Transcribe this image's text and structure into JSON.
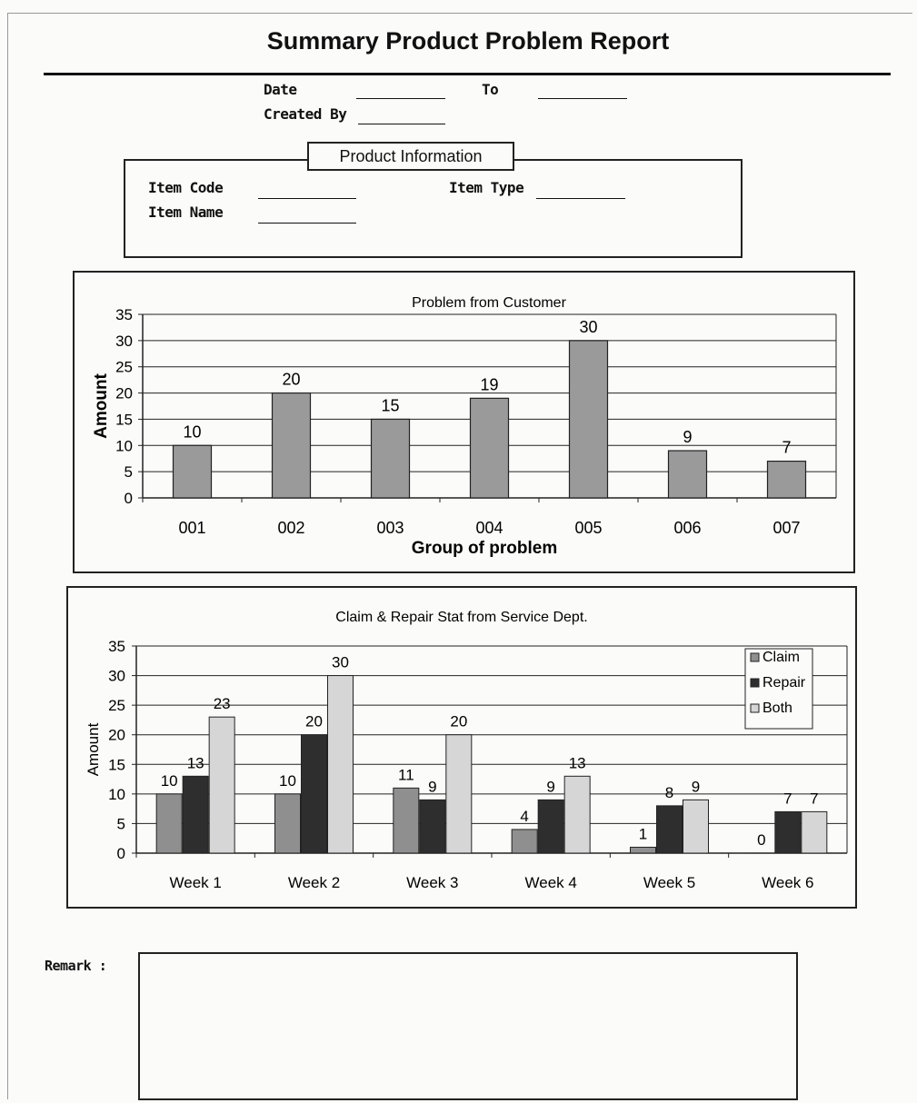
{
  "report": {
    "title": "Summary Product Problem Report",
    "date_label": "Date",
    "to_label": "To",
    "created_by_label": "Created By"
  },
  "product_info": {
    "heading": "Product Information",
    "item_code_label": "Item Code",
    "item_type_label": "Item Type",
    "item_name_label": "Item Name"
  },
  "remark_label": "Remark :",
  "chart_data": [
    {
      "type": "bar",
      "title": "Problem from Customer",
      "xlabel": "Group of problem",
      "ylabel": "Amount",
      "categories": [
        "001",
        "002",
        "003",
        "004",
        "005",
        "006",
        "007"
      ],
      "values": [
        10,
        20,
        15,
        19,
        30,
        9,
        7
      ],
      "ylim": [
        0,
        35
      ],
      "yticks": [
        0,
        5,
        10,
        15,
        20,
        25,
        30,
        35
      ],
      "grid": true,
      "bar_color": "#9a9a9a"
    },
    {
      "type": "bar",
      "title": "Claim & Repair Stat from Service Dept.",
      "xlabel": "",
      "ylabel": "Amount",
      "categories": [
        "Week 1",
        "Week 2",
        "Week 3",
        "Week 4",
        "Week 5",
        "Week 6"
      ],
      "series": [
        {
          "name": "Claim",
          "values": [
            10,
            10,
            11,
            4,
            1,
            0
          ],
          "color": "#8f8f8f"
        },
        {
          "name": "Repair",
          "values": [
            13,
            20,
            9,
            9,
            8,
            7
          ],
          "color": "#2e2e2e"
        },
        {
          "name": "Both",
          "values": [
            23,
            30,
            20,
            13,
            9,
            7
          ],
          "color": "#d6d6d6"
        }
      ],
      "ylim": [
        0,
        35
      ],
      "yticks": [
        0,
        5,
        10,
        15,
        20,
        25,
        30,
        35
      ],
      "grid": true,
      "legend": "top-right"
    }
  ]
}
